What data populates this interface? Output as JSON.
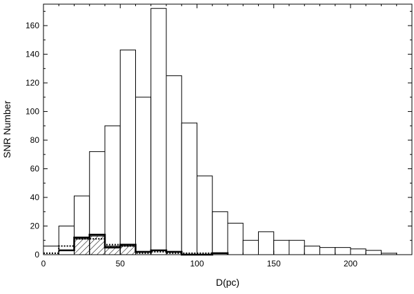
{
  "chart_data": {
    "type": "bar",
    "title": "",
    "xlabel": "D(pc)",
    "ylabel": "SNR Number",
    "xlim": [
      0,
      240
    ],
    "ylim": [
      0,
      175
    ],
    "xticks": [
      0,
      50,
      100,
      150,
      200
    ],
    "yticks": [
      0,
      20,
      40,
      60,
      80,
      100,
      120,
      140,
      160
    ],
    "bin_width": 10,
    "grid": false,
    "series": [
      {
        "style": "outline",
        "bins": [
          {
            "x0": 0,
            "x1": 10,
            "value": 6
          },
          {
            "x0": 10,
            "x1": 20,
            "value": 20
          },
          {
            "x0": 20,
            "x1": 30,
            "value": 41
          },
          {
            "x0": 30,
            "x1": 40,
            "value": 72
          },
          {
            "x0": 40,
            "x1": 50,
            "value": 90
          },
          {
            "x0": 50,
            "x1": 60,
            "value": 143
          },
          {
            "x0": 60,
            "x1": 70,
            "value": 110
          },
          {
            "x0": 70,
            "x1": 80,
            "value": 172
          },
          {
            "x0": 80,
            "x1": 90,
            "value": 125
          },
          {
            "x0": 90,
            "x1": 100,
            "value": 92
          },
          {
            "x0": 100,
            "x1": 110,
            "value": 55
          },
          {
            "x0": 110,
            "x1": 120,
            "value": 30
          },
          {
            "x0": 120,
            "x1": 130,
            "value": 22
          },
          {
            "x0": 130,
            "x1": 140,
            "value": 10
          },
          {
            "x0": 140,
            "x1": 150,
            "value": 16
          },
          {
            "x0": 150,
            "x1": 160,
            "value": 10
          },
          {
            "x0": 160,
            "x1": 170,
            "value": 10
          },
          {
            "x0": 170,
            "x1": 180,
            "value": 6
          },
          {
            "x0": 180,
            "x1": 190,
            "value": 5
          },
          {
            "x0": 190,
            "x1": 200,
            "value": 5
          },
          {
            "x0": 200,
            "x1": 210,
            "value": 4
          },
          {
            "x0": 210,
            "x1": 220,
            "value": 3
          },
          {
            "x0": 220,
            "x1": 230,
            "value": 1
          }
        ]
      },
      {
        "style": "hatched",
        "bins": [
          {
            "x0": 20,
            "x1": 30,
            "value": 11
          },
          {
            "x0": 30,
            "x1": 40,
            "value": 13
          },
          {
            "x0": 40,
            "x1": 50,
            "value": 6
          },
          {
            "x0": 50,
            "x1": 60,
            "value": 6
          }
        ]
      },
      {
        "style": "thick-step",
        "points": [
          [
            10,
            3
          ],
          [
            20,
            3
          ],
          [
            20,
            12
          ],
          [
            30,
            12
          ],
          [
            30,
            14
          ],
          [
            40,
            14
          ],
          [
            40,
            5
          ],
          [
            50,
            5
          ],
          [
            50,
            7
          ],
          [
            60,
            7
          ],
          [
            60,
            2
          ],
          [
            70,
            2
          ],
          [
            70,
            3
          ],
          [
            80,
            3
          ],
          [
            80,
            2
          ],
          [
            90,
            2
          ],
          [
            90,
            0
          ],
          [
            110,
            0
          ],
          [
            110,
            1
          ],
          [
            120,
            1
          ],
          [
            120,
            0
          ]
        ]
      },
      {
        "style": "dotted-step",
        "points": [
          [
            0,
            1
          ],
          [
            10,
            1
          ],
          [
            10,
            6
          ],
          [
            20,
            6
          ],
          [
            20,
            11
          ],
          [
            30,
            11
          ],
          [
            30,
            11
          ],
          [
            40,
            11
          ],
          [
            40,
            7
          ],
          [
            50,
            7
          ],
          [
            50,
            6
          ],
          [
            60,
            6
          ],
          [
            60,
            1
          ],
          [
            70,
            1
          ],
          [
            70,
            2
          ],
          [
            80,
            2
          ],
          [
            80,
            1
          ],
          [
            120,
            1
          ]
        ]
      }
    ]
  }
}
